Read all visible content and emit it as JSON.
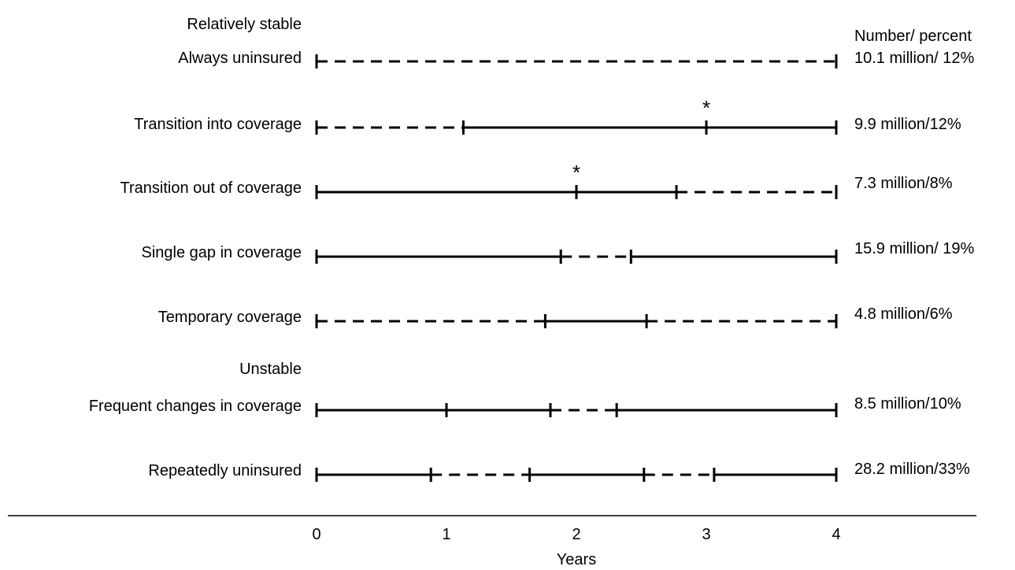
{
  "header": {
    "number_percent": "Number/ percent"
  },
  "groups": {
    "stable": "Relatively stable",
    "unstable": "Unstable"
  },
  "axis": {
    "title": "Years",
    "min": 0,
    "max": 4,
    "ticks": [
      "0",
      "1",
      "2",
      "3",
      "4"
    ]
  },
  "rows": [
    {
      "label": "Always uninsured",
      "value": "10.1 million/ 12%",
      "segments": [
        {
          "from": 0,
          "to": 4,
          "covered": false
        }
      ],
      "marks": [
        0,
        4
      ],
      "stars": []
    },
    {
      "label": "Transition into coverage",
      "value": "9.9 million/12%",
      "segments": [
        {
          "from": 0,
          "to": 1.13,
          "covered": false
        },
        {
          "from": 1.13,
          "to": 4,
          "covered": true
        }
      ],
      "marks": [
        0,
        1.13,
        3,
        4
      ],
      "stars": [
        3
      ]
    },
    {
      "label": "Transition out of coverage",
      "value": "7.3 million/8%",
      "segments": [
        {
          "from": 0,
          "to": 2.77,
          "covered": true
        },
        {
          "from": 2.77,
          "to": 4,
          "covered": false
        }
      ],
      "marks": [
        0,
        2,
        2.77,
        4
      ],
      "stars": [
        2
      ]
    },
    {
      "label": "Single gap in coverage",
      "value": "15.9 million/ 19%",
      "segments": [
        {
          "from": 0,
          "to": 1.88,
          "covered": true
        },
        {
          "from": 1.88,
          "to": 2.42,
          "covered": false
        },
        {
          "from": 2.42,
          "to": 4,
          "covered": true
        }
      ],
      "marks": [
        0,
        1.88,
        2.42,
        4
      ],
      "stars": []
    },
    {
      "label": "Temporary coverage",
      "value": "4.8 million/6%",
      "segments": [
        {
          "from": 0,
          "to": 1.76,
          "covered": false
        },
        {
          "from": 1.76,
          "to": 2.54,
          "covered": true
        },
        {
          "from": 2.54,
          "to": 4,
          "covered": false
        }
      ],
      "marks": [
        0,
        1.76,
        2.54,
        4
      ],
      "stars": []
    },
    {
      "label": "Frequent changes in coverage",
      "value": "8.5 million/10%",
      "segments": [
        {
          "from": 0,
          "to": 1.8,
          "covered": true
        },
        {
          "from": 1.8,
          "to": 2.31,
          "covered": false
        },
        {
          "from": 2.31,
          "to": 4,
          "covered": true
        }
      ],
      "marks": [
        0,
        1,
        1.8,
        2.31,
        4
      ],
      "stars": []
    },
    {
      "label": "Repeatedly uninsured",
      "value": "28.2 million/33%",
      "segments": [
        {
          "from": 0,
          "to": 0.88,
          "covered": true
        },
        {
          "from": 0.88,
          "to": 1.64,
          "covered": false
        },
        {
          "from": 1.64,
          "to": 2.52,
          "covered": true
        },
        {
          "from": 2.52,
          "to": 3.06,
          "covered": false
        },
        {
          "from": 3.06,
          "to": 4,
          "covered": true
        }
      ],
      "marks": [
        0,
        0.88,
        1.64,
        2.52,
        3.06,
        4
      ],
      "stars": []
    }
  ]
}
